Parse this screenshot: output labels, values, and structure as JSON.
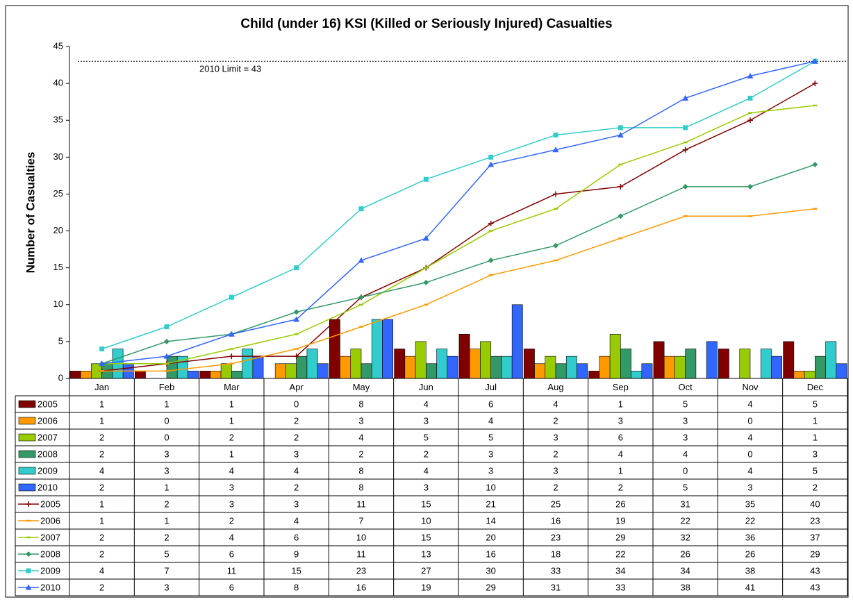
{
  "chart_data": {
    "type": "combo",
    "title": "Child (under 16) KSI (Killed or Seriously Injured) Casualties",
    "y_label": "Number of Casualties",
    "categories": [
      "Jan",
      "Feb",
      "Mar",
      "Apr",
      "May",
      "Jun",
      "Jul",
      "Aug",
      "Sep",
      "Oct",
      "Nov",
      "Dec"
    ],
    "ylim": [
      0,
      45
    ],
    "yticks": [
      0,
      5,
      10,
      15,
      20,
      25,
      30,
      35,
      40,
      45
    ],
    "grid": false,
    "reference_line": {
      "value": 43,
      "label": "2010 Limit = 43"
    },
    "series": [
      {
        "name": "2005",
        "kind": "bar",
        "color": "#800000",
        "values": [
          1,
          1,
          1,
          0,
          8,
          4,
          6,
          4,
          1,
          5,
          4,
          5
        ]
      },
      {
        "name": "2006",
        "kind": "bar",
        "color": "#ff9900",
        "values": [
          1,
          0,
          1,
          2,
          3,
          3,
          4,
          2,
          3,
          3,
          0,
          1
        ]
      },
      {
        "name": "2007",
        "kind": "bar",
        "color": "#99cc00",
        "values": [
          2,
          0,
          2,
          2,
          4,
          5,
          5,
          3,
          6,
          3,
          4,
          1
        ]
      },
      {
        "name": "2008",
        "kind": "bar",
        "color": "#339966",
        "values": [
          2,
          3,
          1,
          3,
          2,
          2,
          3,
          2,
          4,
          4,
          0,
          3
        ]
      },
      {
        "name": "2009",
        "kind": "bar",
        "color": "#33cccc",
        "values": [
          4,
          3,
          4,
          4,
          8,
          4,
          3,
          3,
          1,
          0,
          4,
          5
        ]
      },
      {
        "name": "2010",
        "kind": "bar",
        "color": "#3366ff",
        "values": [
          2,
          1,
          3,
          2,
          8,
          3,
          10,
          2,
          2,
          5,
          3,
          2
        ]
      },
      {
        "name": "2005",
        "kind": "line",
        "marker": "plus",
        "color": "#800000",
        "values": [
          1,
          2,
          3,
          3,
          11,
          15,
          21,
          25,
          26,
          31,
          35,
          40
        ]
      },
      {
        "name": "2006",
        "kind": "line",
        "marker": "dash",
        "color": "#ff9900",
        "values": [
          1,
          1,
          2,
          4,
          7,
          10,
          14,
          16,
          19,
          22,
          22,
          23
        ]
      },
      {
        "name": "2007",
        "kind": "line",
        "marker": "dash",
        "color": "#99cc00",
        "values": [
          2,
          2,
          4,
          6,
          10,
          15,
          20,
          23,
          29,
          32,
          36,
          37
        ]
      },
      {
        "name": "2008",
        "kind": "line",
        "marker": "diamond",
        "color": "#339966",
        "values": [
          2,
          5,
          6,
          9,
          11,
          13,
          16,
          18,
          22,
          26,
          26,
          29
        ]
      },
      {
        "name": "2009",
        "kind": "line",
        "marker": "square",
        "color": "#33cccc",
        "values": [
          4,
          7,
          11,
          15,
          23,
          27,
          30,
          33,
          34,
          34,
          38,
          43
        ]
      },
      {
        "name": "2010",
        "kind": "line",
        "marker": "triangle",
        "color": "#3366ff",
        "values": [
          2,
          3,
          6,
          8,
          16,
          19,
          29,
          31,
          33,
          38,
          41,
          43
        ]
      }
    ]
  }
}
